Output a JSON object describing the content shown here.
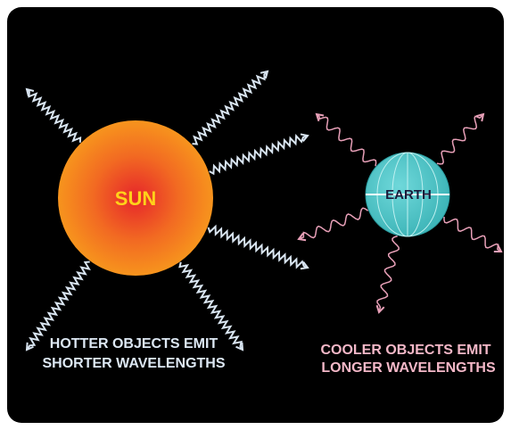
{
  "sun": {
    "label": "SUN"
  },
  "earth": {
    "label": "EARTH"
  },
  "captions": {
    "hot": [
      "HOTTER OBJECTS EMIT",
      "SHORTER WAVELENGTHS"
    ],
    "cool": [
      "COOLER OBJECTS EMIT",
      "LONGER WAVELENGTHS"
    ]
  }
}
